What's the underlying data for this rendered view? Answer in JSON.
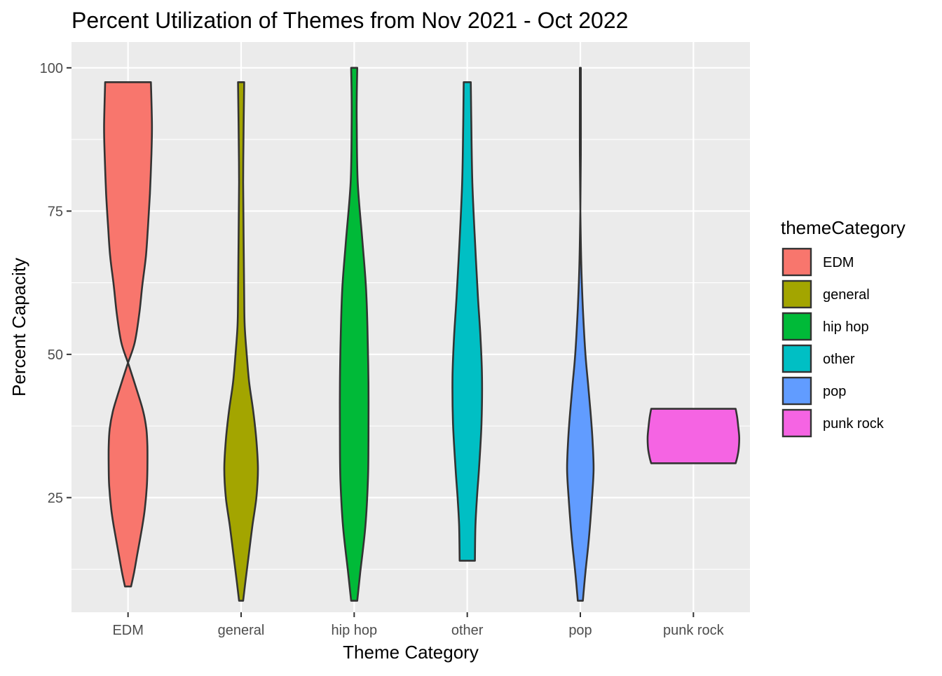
{
  "chart_data": {
    "type": "violin",
    "title": "Percent Utilization of Themes from Nov 2021 - Oct 2022",
    "xlabel": "Theme Category",
    "ylabel": "Percent Capacity",
    "categories": [
      "EDM",
      "general",
      "hip hop",
      "other",
      "pop",
      "punk rock"
    ],
    "ylim": [
      5,
      104.5
    ],
    "yticks": [
      25,
      50,
      75,
      100
    ],
    "grid": true,
    "legend": {
      "title": "themeCategory",
      "position": "right",
      "items": [
        "EDM",
        "general",
        "hip hop",
        "other",
        "pop",
        "punk rock"
      ]
    },
    "series": [
      {
        "name": "EDM",
        "color": "#F8766D",
        "min": 9.5,
        "max": 97.5,
        "profile": [
          [
            9.5,
            0.06
          ],
          [
            12,
            0.12
          ],
          [
            15,
            0.18
          ],
          [
            20,
            0.28
          ],
          [
            23,
            0.33
          ],
          [
            27,
            0.37
          ],
          [
            30,
            0.38
          ],
          [
            34,
            0.38
          ],
          [
            37,
            0.36
          ],
          [
            40,
            0.3
          ],
          [
            43,
            0.2
          ],
          [
            48,
            0.02
          ],
          [
            52,
            -0.13
          ],
          [
            57,
            -0.22
          ],
          [
            62,
            -0.28
          ],
          [
            67,
            -0.35
          ],
          [
            72,
            -0.39
          ],
          [
            78,
            -0.43
          ],
          [
            85,
            -0.46
          ],
          [
            90,
            -0.47
          ],
          [
            97.5,
            -0.45
          ]
        ]
      },
      {
        "name": "general",
        "color": "#A3A500",
        "min": 7,
        "max": 97.5,
        "profile": [
          [
            7,
            0.04
          ],
          [
            10,
            0.08
          ],
          [
            15,
            0.15
          ],
          [
            20,
            0.22
          ],
          [
            25,
            0.3
          ],
          [
            30,
            0.33
          ],
          [
            35,
            0.3
          ],
          [
            40,
            0.24
          ],
          [
            45,
            0.16
          ],
          [
            50,
            0.11
          ],
          [
            55,
            0.07
          ],
          [
            60,
            0.06
          ],
          [
            70,
            0.05
          ],
          [
            80,
            0.04
          ],
          [
            90,
            0.05
          ],
          [
            97.5,
            0.06
          ]
        ]
      },
      {
        "name": "hip hop",
        "color": "#00BA38",
        "min": 7,
        "max": 100,
        "profile": [
          [
            7,
            0.06
          ],
          [
            12,
            0.12
          ],
          [
            20,
            0.22
          ],
          [
            28,
            0.27
          ],
          [
            35,
            0.28
          ],
          [
            45,
            0.28
          ],
          [
            55,
            0.26
          ],
          [
            62,
            0.23
          ],
          [
            70,
            0.16
          ],
          [
            80,
            0.07
          ],
          [
            90,
            0.05
          ],
          [
            95,
            0.05
          ],
          [
            100,
            0.06
          ]
        ]
      },
      {
        "name": "other",
        "color": "#00BFC4",
        "min": 14,
        "max": 97.5,
        "profile": [
          [
            14,
            0.15
          ],
          [
            20,
            0.16
          ],
          [
            25,
            0.19
          ],
          [
            30,
            0.23
          ],
          [
            38,
            0.28
          ],
          [
            46,
            0.29
          ],
          [
            53,
            0.26
          ],
          [
            60,
            0.21
          ],
          [
            70,
            0.15
          ],
          [
            80,
            0.1
          ],
          [
            90,
            0.08
          ],
          [
            97.5,
            0.07
          ]
        ]
      },
      {
        "name": "pop",
        "color": "#619CFF",
        "min": 7,
        "max": 100,
        "profile": [
          [
            7,
            0.05
          ],
          [
            12,
            0.1
          ],
          [
            18,
            0.17
          ],
          [
            25,
            0.23
          ],
          [
            30,
            0.26
          ],
          [
            35,
            0.24
          ],
          [
            40,
            0.2
          ],
          [
            45,
            0.15
          ],
          [
            50,
            0.1
          ],
          [
            58,
            0.05
          ],
          [
            65,
            0.02
          ],
          [
            75,
            0.0
          ],
          [
            85,
            -0.01
          ],
          [
            95,
            -0.01
          ],
          [
            100,
            -0.01
          ]
        ]
      },
      {
        "name": "punk rock",
        "color": "#F564E3",
        "min": 31,
        "max": 40.5,
        "profile": [
          [
            31,
            0.83
          ],
          [
            32,
            0.86
          ],
          [
            33.5,
            0.89
          ],
          [
            35.5,
            0.9
          ],
          [
            37.5,
            0.88
          ],
          [
            39,
            0.86
          ],
          [
            40.5,
            0.83
          ]
        ]
      }
    ]
  }
}
